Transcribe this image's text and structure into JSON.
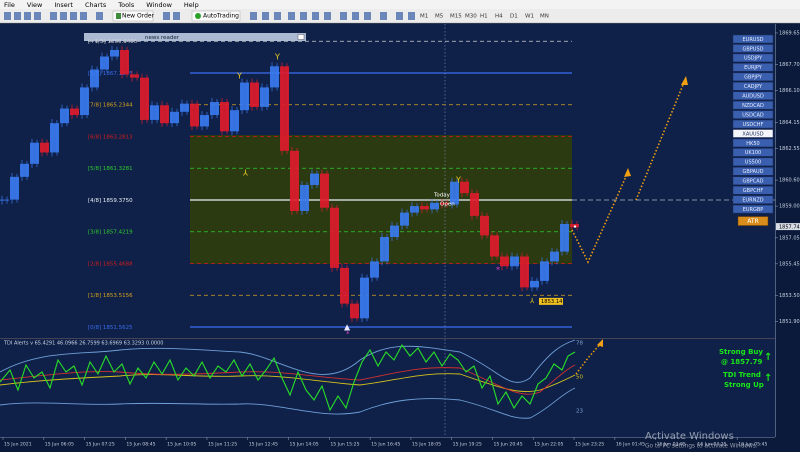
{
  "menu": [
    "File",
    "View",
    "Insert",
    "Charts",
    "Tools",
    "Window",
    "Help"
  ],
  "toolbar": {
    "new_order": "New Order",
    "autotrading": "AutoTrading",
    "timeframes": [
      "M1",
      "M5",
      "M15",
      "M30",
      "H1",
      "H4",
      "D1",
      "W1",
      "MN"
    ]
  },
  "news_reader": "news reader",
  "chart": {
    "ylim": [
      1850.9,
      1870.2
    ],
    "levels": [
      {
        "value": 1869.1406,
        "label": "[+1/8] 1869.1406",
        "color": "#d0d0d0",
        "dash": true
      },
      {
        "value": 1867.1875,
        "label": "[8/8] 1867.1875",
        "color": "#3a6cf0",
        "dash": false
      },
      {
        "value": 1865.2344,
        "label": "[7/8] 1865.2344",
        "color": "#d6a21c",
        "dash": true
      },
      {
        "value": 1863.2813,
        "label": "[6/8] 1863.2813",
        "color": "#d01c1c",
        "dash": true
      },
      {
        "value": 1861.3281,
        "label": "[5/8] 1861.3281",
        "color": "#2ecc2e",
        "dash": true
      },
      {
        "value": 1859.375,
        "label": "[4/8] 1859.3750",
        "color": "#e8eef8",
        "dash": false
      },
      {
        "value": 1857.4219,
        "label": "[3/8] 1857.4219",
        "color": "#2ecc2e",
        "dash": true
      },
      {
        "value": 1855.4688,
        "label": "[2/8] 1855.4688",
        "color": "#d01c1c",
        "dash": true
      },
      {
        "value": 1853.5156,
        "label": "[1/8] 1853.5156",
        "color": "#d6a21c",
        "dash": true
      },
      {
        "value": 1851.5625,
        "label": "[0/8] 1851.5625",
        "color": "#3a6cf0",
        "dash": false
      }
    ],
    "price_path": [
      1859.4,
      1860.8,
      1861.6,
      1862.9,
      1862.3,
      1864.1,
      1865.0,
      1864.6,
      1866.3,
      1867.4,
      1868.2,
      1868.6,
      1867.1,
      1866.9,
      1864.3,
      1865.2,
      1864.1,
      1864.8,
      1865.3,
      1863.9,
      1864.6,
      1865.4,
      1863.6,
      1864.9,
      1866.6,
      1865.1,
      1866.3,
      1867.6,
      1862.4,
      1858.7,
      1860.3,
      1861.0,
      1858.9,
      1855.2,
      1853.0,
      1852.1,
      1854.6,
      1855.6,
      1857.1,
      1857.8,
      1858.6,
      1859.0,
      1858.8,
      1859.2,
      1859.1,
      1860.5,
      1859.8,
      1858.4,
      1857.2,
      1855.9,
      1855.3,
      1855.9,
      1854.0,
      1854.4,
      1855.6,
      1856.2,
      1857.9,
      1857.7
    ],
    "up_color": "#3a7af0",
    "down_color": "#e01c2c",
    "today": "Today",
    "open": "Open",
    "low_label": {
      "value": 1853.14,
      "label": "1853.14"
    },
    "current": {
      "value": 1857.74,
      "label": "1857.74"
    }
  },
  "price_axis": {
    "ticks": [
      {
        "value": 1869.65,
        "label": "1869.65"
      },
      {
        "value": 1867.7,
        "label": "1867.70"
      },
      {
        "value": 1866.1,
        "label": "1866.10"
      },
      {
        "value": 1864.15,
        "label": "1864.15"
      },
      {
        "value": 1862.55,
        "label": "1862.55"
      },
      {
        "value": 1860.6,
        "label": "1860.60"
      },
      {
        "value": 1859.0,
        "label": "1859.00"
      },
      {
        "value": 1857.05,
        "label": "1857.05"
      },
      {
        "value": 1855.45,
        "label": "1855.45"
      },
      {
        "value": 1853.5,
        "label": "1853.50"
      },
      {
        "value": 1851.9,
        "label": "1851.90"
      }
    ]
  },
  "symbols": [
    "EURUSD",
    "GBPUSD",
    "USDJPY",
    "EURJPY",
    "GBPJPY",
    "CADJPY",
    "AUDUSD",
    "NZDCAD",
    "USDCAD",
    "USDCHF",
    "XAUUSD",
    "HK50",
    "UK100",
    "US500",
    "GBPAUD",
    "GBPCAD",
    "GBPCHF",
    "EURNZD",
    "EURGBP"
  ],
  "active_symbol": "XAUUSD",
  "atr_button": "ATR",
  "indicator": {
    "title": "TDI Alerts v 65.4291 46.0966 26.7599 63.6969 63.3293 0.0000",
    "axis_top": "75.6484",
    "level_top": "78",
    "level_mid": "50",
    "level_low": "23",
    "signal": [
      "Strong Buy",
      "@ 1857.79",
      "TDI Trend",
      "Strong Up"
    ]
  },
  "time_axis": [
    "15 Jun 2021",
    "15 Jun 06:05",
    "15 Jun 07:25",
    "15 Jun 08:45",
    "15 Jun 10:05",
    "15 Jun 11:25",
    "15 Jun 12:45",
    "15 Jun 14:05",
    "15 Jun 15:25",
    "15 Jun 16:45",
    "15 Jun 18:05",
    "15 Jun 19:25",
    "15 Jun 20:45",
    "15 Jun 22:05",
    "15 Jun 23:25",
    "16 Jun 01:45",
    "16 Jun 03:05",
    "16 Jun 04:25",
    "16 Jun 05:45"
  ],
  "watermark": {
    "title": "Activate Windows",
    "subtitle": "Go to PC settings to activate Windows."
  }
}
